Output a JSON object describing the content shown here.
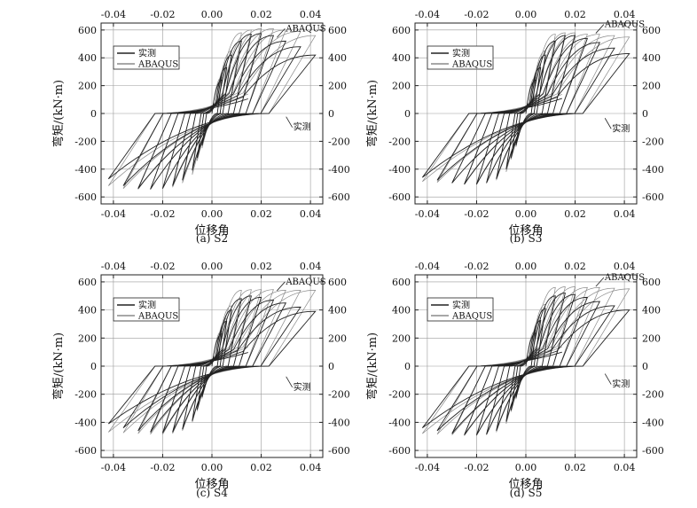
{
  "chart_data": [
    {
      "type": "line",
      "caption": "(a) S2",
      "xlabel": "位移角",
      "ylabel": "弯矩/(kN·m)",
      "xlim": [
        -0.045,
        0.045
      ],
      "ylim": [
        -650,
        650
      ],
      "xticks": [
        "-0.04",
        "-0.02",
        "0.00",
        "0.02",
        "0.04"
      ],
      "yticks": [
        "600",
        "400",
        "200",
        "0",
        "-200",
        "-400",
        "-600"
      ],
      "grid": true,
      "legend": {
        "position": "upper-left",
        "entries": [
          "实测",
          "ABAQUS"
        ]
      },
      "annotations": [
        {
          "text": "ABAQUS",
          "x": 0.03,
          "y": 610
        },
        {
          "text": "实测",
          "x": 0.033,
          "y": -100
        }
      ],
      "series": [
        {
          "name": "实测",
          "color": "#222222",
          "peak_drift": [
            0.004,
            0.006,
            0.008,
            0.012,
            0.016,
            0.02,
            0.025,
            0.03,
            0.036,
            0.042
          ],
          "peak_pos": [
            240,
            330,
            420,
            520,
            570,
            575,
            560,
            520,
            480,
            420
          ],
          "peak_neg": [
            -230,
            -320,
            -410,
            -480,
            -520,
            -540,
            -545,
            -540,
            -520,
            -470
          ]
        },
        {
          "name": "ABAQUS",
          "color": "#8a8a8a",
          "peak_drift": [
            0.004,
            0.006,
            0.008,
            0.012,
            0.016,
            0.02,
            0.025,
            0.03,
            0.036,
            0.042
          ],
          "peak_pos": [
            260,
            350,
            450,
            580,
            600,
            610,
            610,
            600,
            590,
            560
          ],
          "peak_neg": [
            -250,
            -340,
            -440,
            -500,
            -530,
            -540,
            -545,
            -545,
            -540,
            -520
          ]
        }
      ]
    },
    {
      "type": "line",
      "caption": "(b) S3",
      "xlabel": "位移角",
      "ylabel": "弯矩/(kN·m)",
      "xlim": [
        -0.045,
        0.045
      ],
      "ylim": [
        -650,
        650
      ],
      "xticks": [
        "-0.04",
        "-0.02",
        "0.00",
        "0.02",
        "0.04"
      ],
      "yticks": [
        "600",
        "400",
        "200",
        "0",
        "-200",
        "-400",
        "-600"
      ],
      "grid": true,
      "legend": {
        "position": "upper-left",
        "entries": [
          "实测",
          "ABAQUS"
        ]
      },
      "annotations": [
        {
          "text": "ABAQUS",
          "x": 0.032,
          "y": 640
        },
        {
          "text": "实测",
          "x": 0.035,
          "y": -110
        }
      ],
      "series": [
        {
          "name": "实测",
          "color": "#222222",
          "peak_drift": [
            0.004,
            0.006,
            0.008,
            0.012,
            0.016,
            0.02,
            0.025,
            0.03,
            0.036,
            0.042
          ],
          "peak_pos": [
            240,
            330,
            420,
            520,
            560,
            560,
            540,
            510,
            470,
            430
          ],
          "peak_neg": [
            -230,
            -320,
            -400,
            -470,
            -500,
            -510,
            -510,
            -500,
            -480,
            -460
          ]
        },
        {
          "name": "ABAQUS",
          "color": "#8a8a8a",
          "peak_drift": [
            0.004,
            0.006,
            0.008,
            0.012,
            0.016,
            0.02,
            0.025,
            0.03,
            0.036,
            0.042
          ],
          "peak_pos": [
            260,
            350,
            450,
            570,
            580,
            580,
            570,
            570,
            560,
            550
          ],
          "peak_neg": [
            -240,
            -330,
            -420,
            -480,
            -500,
            -505,
            -505,
            -500,
            -495,
            -490
          ]
        }
      ]
    },
    {
      "type": "line",
      "caption": "(c) S4",
      "xlabel": "位移角",
      "ylabel": "弯矩/(kN·m)",
      "xlim": [
        -0.045,
        0.045
      ],
      "ylim": [
        -650,
        650
      ],
      "xticks": [
        "-0.04",
        "-0.02",
        "0.00",
        "0.02",
        "0.04"
      ],
      "yticks": [
        "600",
        "400",
        "200",
        "0",
        "-200",
        "-400",
        "-600"
      ],
      "grid": true,
      "legend": {
        "position": "upper-left",
        "entries": [
          "实测",
          "ABAQUS"
        ]
      },
      "annotations": [
        {
          "text": "ABAQUS",
          "x": 0.03,
          "y": 600
        },
        {
          "text": "实测",
          "x": 0.033,
          "y": -150
        }
      ],
      "series": [
        {
          "name": "实测",
          "color": "#222222",
          "peak_drift": [
            0.004,
            0.006,
            0.008,
            0.012,
            0.016,
            0.02,
            0.025,
            0.03,
            0.036,
            0.042
          ],
          "peak_pos": [
            230,
            320,
            400,
            480,
            500,
            490,
            470,
            450,
            420,
            390
          ],
          "peak_neg": [
            -220,
            -310,
            -390,
            -450,
            -470,
            -475,
            -470,
            -460,
            -440,
            -410
          ]
        },
        {
          "name": "ABAQUS",
          "color": "#8a8a8a",
          "peak_drift": [
            0.004,
            0.006,
            0.008,
            0.012,
            0.016,
            0.02,
            0.025,
            0.03,
            0.036,
            0.042
          ],
          "peak_pos": [
            250,
            340,
            430,
            540,
            545,
            545,
            545,
            540,
            540,
            540
          ],
          "peak_neg": [
            -230,
            -320,
            -400,
            -460,
            -480,
            -485,
            -485,
            -480,
            -475,
            -470
          ]
        }
      ]
    },
    {
      "type": "line",
      "caption": "(d) S5",
      "xlabel": "位移角",
      "ylabel": "弯矩/(kN·m)",
      "xlim": [
        -0.045,
        0.045
      ],
      "ylim": [
        -650,
        650
      ],
      "xticks": [
        "-0.04",
        "-0.02",
        "0.00",
        "0.02",
        "0.04"
      ],
      "yticks": [
        "600",
        "400",
        "200",
        "0",
        "-200",
        "-400",
        "-600"
      ],
      "grid": true,
      "legend": {
        "position": "upper-left",
        "entries": [
          "实测",
          "ABAQUS"
        ]
      },
      "annotations": [
        {
          "text": "ABAQUS",
          "x": 0.032,
          "y": 630
        },
        {
          "text": "实测",
          "x": 0.035,
          "y": -130
        }
      ],
      "series": [
        {
          "name": "实测",
          "color": "#222222",
          "peak_drift": [
            0.004,
            0.006,
            0.008,
            0.012,
            0.016,
            0.02,
            0.025,
            0.03,
            0.036,
            0.042
          ],
          "peak_pos": [
            235,
            325,
            410,
            500,
            520,
            510,
            490,
            460,
            430,
            400
          ],
          "peak_neg": [
            -225,
            -315,
            -395,
            -460,
            -485,
            -490,
            -490,
            -480,
            -460,
            -440
          ]
        },
        {
          "name": "ABAQUS",
          "color": "#8a8a8a",
          "peak_drift": [
            0.004,
            0.006,
            0.008,
            0.012,
            0.016,
            0.02,
            0.025,
            0.03,
            0.036,
            0.042
          ],
          "peak_pos": [
            255,
            345,
            440,
            560,
            565,
            565,
            560,
            560,
            555,
            550
          ],
          "peak_neg": [
            -235,
            -325,
            -410,
            -470,
            -490,
            -495,
            -495,
            -490,
            -485,
            -480
          ]
        }
      ]
    }
  ]
}
